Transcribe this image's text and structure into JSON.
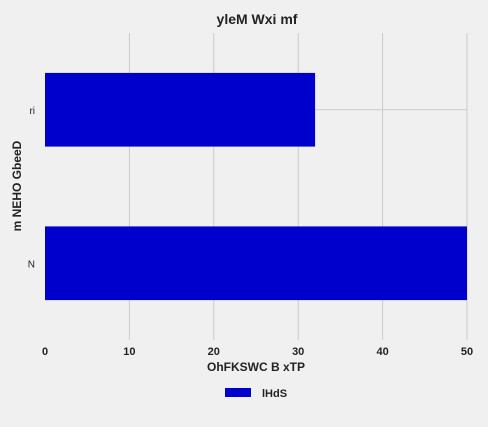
{
  "chart_data": {
    "type": "bar",
    "orientation": "horizontal",
    "title": "yleM Wxi mf",
    "xlabel": "OhFKSWC B xTP",
    "ylabel": "m NEHO GbeeD",
    "categories": [
      "ri",
      "N"
    ],
    "series": [
      {
        "name": "lHdS",
        "values": [
          32,
          50
        ],
        "color": "#0000cc"
      }
    ],
    "xlim": [
      0,
      50
    ],
    "xticks": [
      0,
      10,
      20,
      30,
      40,
      50
    ],
    "grid": true,
    "legend_position": "bottom-center",
    "background": "#f0f0f0"
  }
}
